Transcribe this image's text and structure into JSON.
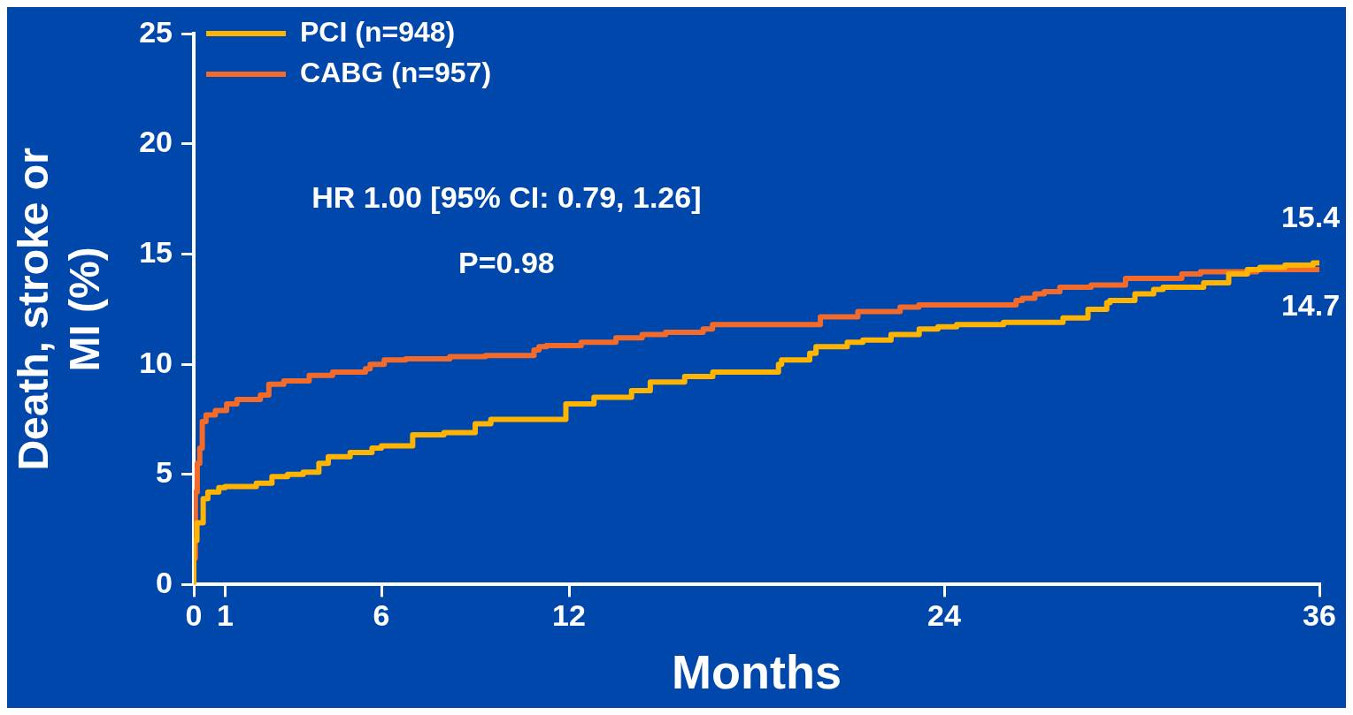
{
  "chart_data": {
    "type": "step",
    "xlabel": "Months",
    "ylabel": "Death, stroke or MI (%)",
    "xlim": [
      0,
      36
    ],
    "xticks": [
      0,
      1,
      6,
      12,
      24,
      36
    ],
    "ylim": [
      0,
      25
    ],
    "yticks": [
      0,
      5,
      10,
      15,
      20,
      25
    ],
    "grid": false,
    "legend": "top left",
    "marker": "none",
    "line_style": "solid",
    "annotations": [
      "HR 1.00 [95% CI: 0.79, 1.26]",
      "P=0.98",
      "15.4",
      "14.7"
    ],
    "series": [
      {
        "name": "PCI (n=948)",
        "color": "#ffb400",
        "x": [
          0,
          0.1,
          0.3,
          0.45,
          0.8,
          1.0,
          2.0,
          2.5,
          3.0,
          3.5,
          4.0,
          4.3,
          5.0,
          5.7,
          6.0,
          7.0,
          8.0,
          9.0,
          9.5,
          10.0,
          11.9,
          12.8,
          14.0,
          14.6,
          15.7,
          16.6,
          18.7,
          18.8,
          19.7,
          19.9,
          20.9,
          21.4,
          22.3,
          23.2,
          23.8,
          24.4,
          25.9,
          27.8,
          28.6,
          29.2,
          29.3,
          30.1,
          30.7,
          31.0,
          32.3,
          33.1,
          33.7,
          34.1,
          34.9,
          35.8,
          35.9,
          36
        ],
        "values": [
          0,
          2.0,
          2.8,
          3.9,
          4.2,
          4.4,
          4.45,
          4.6,
          4.9,
          5.0,
          5.1,
          5.5,
          5.8,
          6.0,
          6.2,
          6.3,
          6.8,
          6.9,
          7.3,
          7.5,
          7.5,
          8.2,
          8.5,
          8.8,
          9.2,
          9.45,
          9.65,
          10.0,
          10.2,
          10.5,
          10.8,
          11.0,
          11.1,
          11.35,
          11.6,
          11.7,
          11.8,
          11.9,
          12.1,
          12.5,
          12.8,
          12.9,
          13.2,
          13.4,
          13.5,
          13.7,
          14.1,
          14.3,
          14.4,
          14.5,
          14.6,
          14.6
        ]
      },
      {
        "name": "CABG (n=957)",
        "color": "#f26b2a",
        "x": [
          0,
          0.05,
          0.11,
          0.19,
          0.27,
          0.39,
          0.69,
          1.05,
          1.38,
          2.13,
          2.4,
          2.88,
          3.69,
          4.44,
          5.49,
          5.64,
          6.09,
          6.78,
          8.19,
          9.33,
          10.88,
          11.04,
          11.28,
          12.39,
          13.5,
          14.34,
          15.09,
          16.29,
          16.59,
          20.04,
          21.24,
          22.59,
          23.19,
          24.39,
          26.3,
          26.5,
          26.9,
          27.2,
          27.7,
          28.7,
          29.8,
          31.6,
          32.2,
          34.0,
          36
        ],
        "values": [
          0,
          1.2,
          4.2,
          5.5,
          6.2,
          7.4,
          7.7,
          7.9,
          8.2,
          8.4,
          8.6,
          9.1,
          9.25,
          9.5,
          9.65,
          9.8,
          10.0,
          10.2,
          10.25,
          10.35,
          10.4,
          10.65,
          10.8,
          10.85,
          11.0,
          11.2,
          11.35,
          11.45,
          11.6,
          11.8,
          12.15,
          12.4,
          12.6,
          12.7,
          12.7,
          12.9,
          13.0,
          13.2,
          13.3,
          13.5,
          13.6,
          13.9,
          14.1,
          14.2,
          14.3
        ]
      }
    ]
  }
}
